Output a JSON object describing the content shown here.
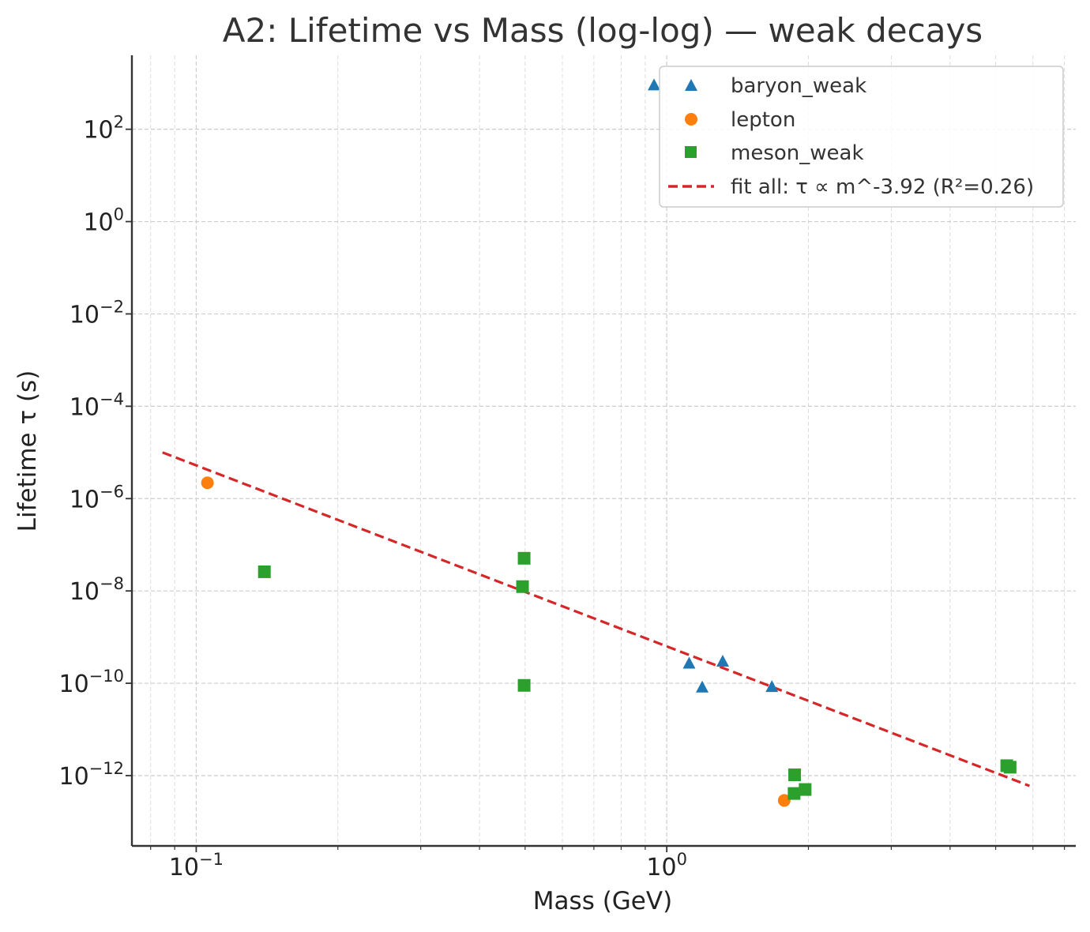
{
  "chart_data": {
    "type": "scatter",
    "title": "A2: Lifetime vs Mass (log-log) — weak decays",
    "xlabel": "Mass (GeV)",
    "ylabel": "Lifetime τ (s)",
    "xscale": "log",
    "yscale": "log",
    "xlim": [
      0.073,
      7.4
    ],
    "ylim": [
      3e-14,
      4000.0
    ],
    "xticks": [
      {
        "value": 0.1,
        "base": "10",
        "exp": "−1"
      },
      {
        "value": 1,
        "base": "10",
        "exp": "0"
      }
    ],
    "yticks": [
      {
        "value": 100.0,
        "base": "10",
        "exp": "2"
      },
      {
        "value": 1.0,
        "base": "10",
        "exp": "0"
      },
      {
        "value": 0.01,
        "base": "10",
        "exp": "−2"
      },
      {
        "value": 0.0001,
        "base": "10",
        "exp": "−4"
      },
      {
        "value": 1e-06,
        "base": "10",
        "exp": "−6"
      },
      {
        "value": 1e-08,
        "base": "10",
        "exp": "−8"
      },
      {
        "value": 1e-10,
        "base": "10",
        "exp": "−10"
      },
      {
        "value": 1e-12,
        "base": "10",
        "exp": "−12"
      }
    ],
    "grid": true,
    "legend_position": "top-right",
    "series": [
      {
        "name": "baryon_weak",
        "marker": "triangle",
        "color": "#1f77b4",
        "points": [
          [
            0.9396,
            880
          ],
          [
            1.1157,
            2.63e-10
          ],
          [
            1.1894,
            8e-11
          ],
          [
            1.3149,
            2.9e-10
          ],
          [
            1.6725,
            8.2e-11
          ]
        ]
      },
      {
        "name": "lepton",
        "marker": "circle",
        "color": "#ff7f0e",
        "points": [
          [
            0.10566,
            2.2e-06
          ],
          [
            1.7769,
            2.9e-13
          ]
        ]
      },
      {
        "name": "meson_weak",
        "marker": "square",
        "color": "#2ca02c",
        "points": [
          [
            0.1396,
            2.6e-08
          ],
          [
            0.4937,
            1.24e-08
          ],
          [
            0.4976,
            5.1e-08
          ],
          [
            0.4976,
            9e-11
          ],
          [
            1.8648,
            4.1e-13
          ],
          [
            1.8697,
            1.04e-12
          ],
          [
            1.9683,
            5e-13
          ],
          [
            5.2793,
            1.64e-12
          ],
          [
            5.3663,
            1.52e-12
          ]
        ]
      }
    ],
    "fit": {
      "name": "fit all: τ ∝ m^-3.92 (R²=0.26)",
      "color": "#d62728",
      "style": "dashed",
      "exponent": -3.92,
      "x_range": [
        0.0848,
        5.9
      ],
      "y_at_start": 1e-05
    }
  }
}
